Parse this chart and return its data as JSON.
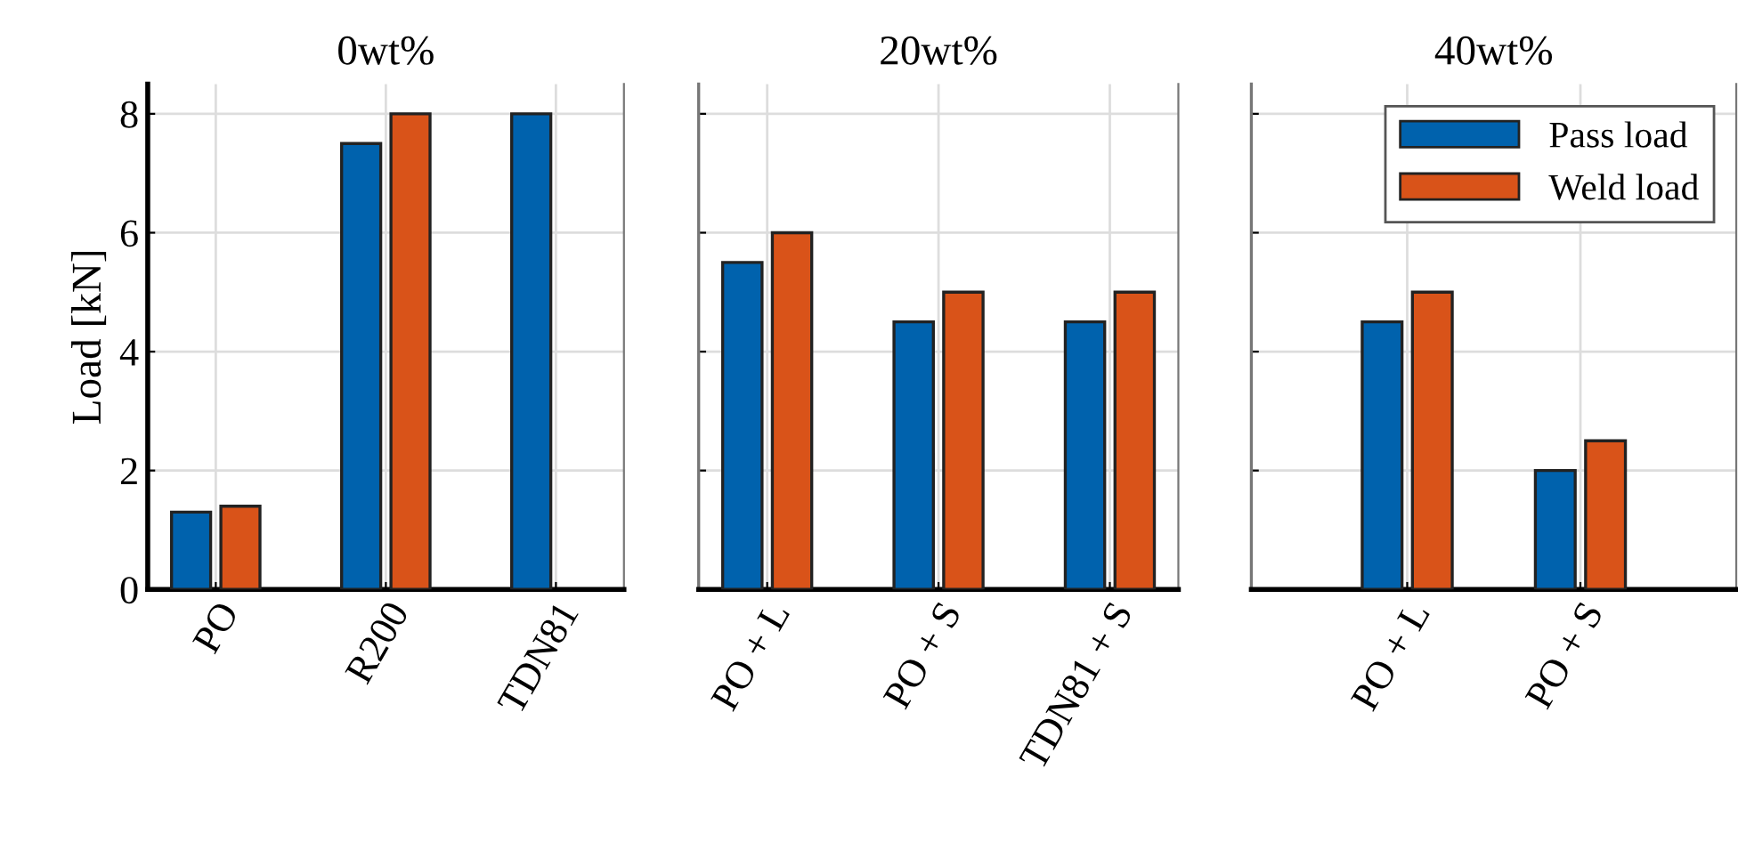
{
  "chart_data": [
    {
      "type": "bar",
      "title": "0wt%",
      "ylabel": "Load [kN]",
      "categories": [
        "PO",
        "R200",
        "TDN81"
      ],
      "series": [
        {
          "color": "#0062ad",
          "values": [
            1.3,
            7.5,
            8
          ]
        },
        {
          "color": "#d95319",
          "values": [
            1.4,
            8,
            null
          ]
        }
      ],
      "ylim": [
        0,
        8.5
      ],
      "yticks": [
        0,
        2,
        4,
        6,
        8
      ],
      "grid": true,
      "legend": false
    },
    {
      "type": "bar",
      "title": "20wt%",
      "categories": [
        "PO + L",
        "PO + S",
        "TDN81 + S"
      ],
      "series": [
        {
          "color": "#0062ad",
          "values": [
            5.5,
            4.5,
            4.5
          ]
        },
        {
          "color": "#d95319",
          "values": [
            6,
            5,
            5
          ]
        }
      ],
      "ylim": [
        0,
        8.5
      ],
      "yticks": [
        0,
        2,
        4,
        6,
        8
      ],
      "grid": true,
      "legend": false,
      "tick_labels": "x"
    },
    {
      "type": "bar",
      "title": "40wt%",
      "categories": [
        "PO + L",
        "PO + S"
      ],
      "series": [
        {
          "name": "Pass load",
          "color": "#0062ad",
          "values": [
            4.5,
            2
          ]
        },
        {
          "name": "Weld load",
          "color": "#d95319",
          "values": [
            5,
            2.5
          ]
        }
      ],
      "ylim": [
        0,
        8.5
      ],
      "yticks": [
        0,
        2,
        4,
        6,
        8
      ],
      "grid": true,
      "legend": "top right",
      "tick_labels": "x"
    }
  ]
}
